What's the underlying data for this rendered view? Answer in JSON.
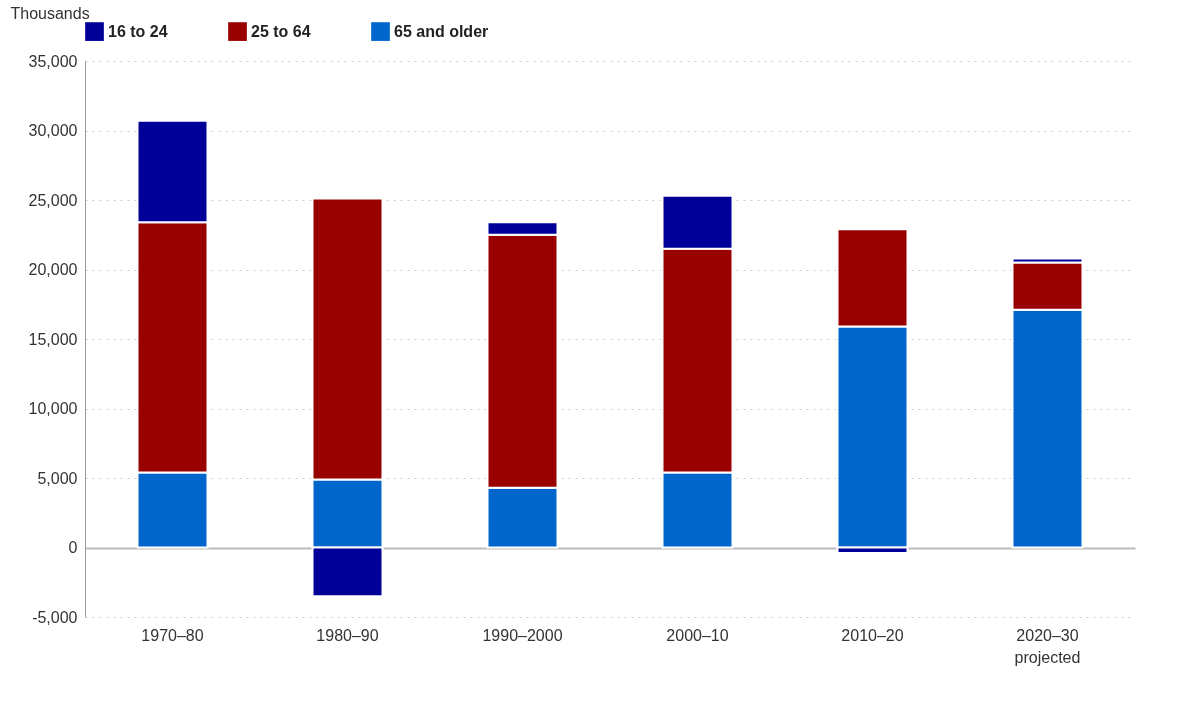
{
  "chart_data": {
    "type": "bar",
    "stacked": true,
    "ylabel": "Thousands",
    "categories": [
      "1970–80",
      "1980–90",
      "1990–2000",
      "2000–10",
      "2010–20",
      "2020–30\nprojected"
    ],
    "series": [
      {
        "name": "65 and older",
        "color": "#0066cc",
        "values": [
          5400,
          4900,
          4300,
          5400,
          15900,
          17100
        ]
      },
      {
        "name": "25 to 64",
        "color": "#990000",
        "values": [
          18000,
          20200,
          18200,
          16100,
          7000,
          3400
        ]
      },
      {
        "name": "16 to 24",
        "color": "#000099",
        "values": [
          7300,
          -3500,
          900,
          3800,
          -400,
          300
        ]
      }
    ],
    "ylim": [
      -5000,
      35000
    ],
    "yticks": [
      {
        "value": -5000,
        "label": "-5,000"
      },
      0,
      {
        "value": 5000,
        "label": "5,000"
      },
      {
        "value": 10000,
        "label": "10,000"
      },
      {
        "value": 15000,
        "label": "15,000"
      },
      {
        "value": 20000,
        "label": "20,000"
      },
      {
        "value": 25000,
        "label": "25,000"
      },
      {
        "value": 30000,
        "label": "30,000"
      },
      {
        "value": 35000,
        "label": "35,000"
      }
    ],
    "grid": "y",
    "legend": "top"
  }
}
